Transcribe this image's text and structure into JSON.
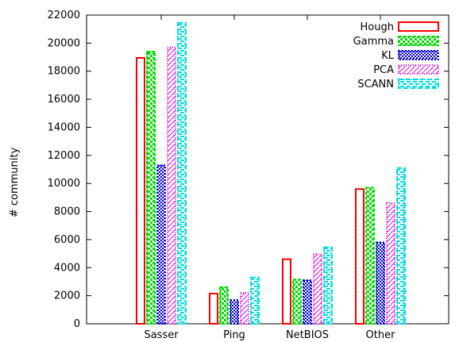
{
  "chart_data": {
    "type": "bar",
    "title": "",
    "xlabel": "",
    "ylabel": "# community",
    "ylim": [
      0,
      22000
    ],
    "yticks": [
      0,
      2000,
      4000,
      6000,
      8000,
      10000,
      12000,
      14000,
      16000,
      18000,
      20000,
      22000
    ],
    "categories": [
      "Sasser",
      "Ping",
      "NetBIOS",
      "Other"
    ],
    "legend_position": "top-right",
    "grid": false,
    "series": [
      {
        "name": "Hough",
        "color": "#ff0000",
        "pattern": "outline",
        "values": [
          18950,
          2150,
          4600,
          9600
        ]
      },
      {
        "name": "Gamma",
        "color": "#00dd00",
        "pattern": "checker",
        "values": [
          19400,
          2600,
          3150,
          9700
        ]
      },
      {
        "name": "KL",
        "color": "#0000cc",
        "pattern": "dots",
        "values": [
          11300,
          1700,
          3100,
          5800
        ]
      },
      {
        "name": "PCA",
        "color": "#dd00dd",
        "pattern": "lines",
        "values": [
          19700,
          2200,
          4950,
          8600
        ]
      },
      {
        "name": "SCANN",
        "color": "#00dddd",
        "pattern": "dashes",
        "values": [
          21450,
          3300,
          5450,
          11100
        ]
      }
    ]
  }
}
